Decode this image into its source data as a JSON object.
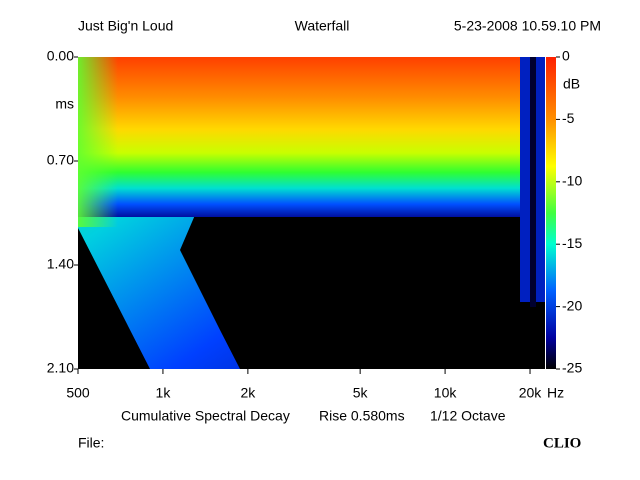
{
  "chart_data": {
    "type": "heatmap",
    "title": "Waterfall",
    "header_left": "Just Big'n Loud",
    "header_right": "5-23-2008 10.59.10 PM",
    "subtitle": [
      "Cumulative Spectral Decay",
      "Rise 0.580ms",
      "1/12 Octave"
    ],
    "footer_left": "File:",
    "footer_right": "CLIO",
    "x_unit": "Hz",
    "y_label": "ms",
    "x_log": true,
    "xlim": [
      500,
      22600
    ],
    "xticks": [
      500,
      {
        "value": 1000,
        "label": "1k"
      },
      {
        "value": 2000,
        "label": "2k"
      },
      {
        "value": 5000,
        "label": "5k"
      },
      {
        "value": 10000,
        "label": "10k"
      },
      {
        "value": 20000,
        "label": "20k"
      }
    ],
    "ylim": [
      0,
      2.1
    ],
    "yticks": [
      {
        "value": 0,
        "label": "0.00"
      },
      {
        "value": 0.7,
        "label": "0.70"
      },
      {
        "value": 1.4,
        "label": "1.40"
      },
      {
        "value": 2.1,
        "label": "2.10"
      }
    ],
    "colorbar_label": "dB",
    "colorbar_lim": [
      -25,
      0
    ],
    "colorbar_ticks": [
      0,
      -5,
      -10,
      -15,
      -20,
      -25
    ]
  }
}
